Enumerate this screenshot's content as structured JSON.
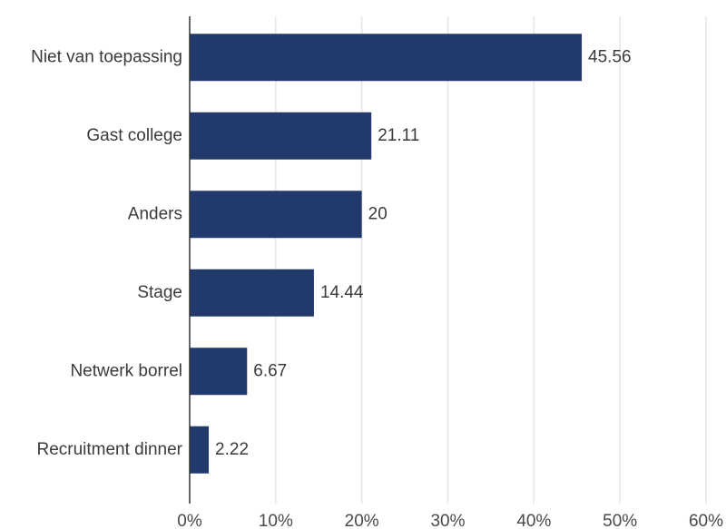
{
  "chart_data": {
    "type": "bar",
    "orientation": "horizontal",
    "categories": [
      "Niet van toepassing",
      "Gast college",
      "Anders",
      "Stage",
      "Netwerk borrel",
      "Recruitment dinner"
    ],
    "values": [
      45.56,
      21.11,
      20,
      14.44,
      6.67,
      2.22
    ],
    "value_labels": [
      "45.56",
      "21.11",
      "20",
      "14.44",
      "6.67",
      "2.22"
    ],
    "xlim": [
      0,
      60
    ],
    "xticks": [
      0,
      10,
      20,
      30,
      40,
      50,
      60
    ],
    "xtick_labels": [
      "0%",
      "10%",
      "20%",
      "30%",
      "40%",
      "50%",
      "60%"
    ],
    "grid": "vertical",
    "bar_color": "#223a6b",
    "grid_color": "#e6e6e6",
    "axis_color": "#333333"
  }
}
